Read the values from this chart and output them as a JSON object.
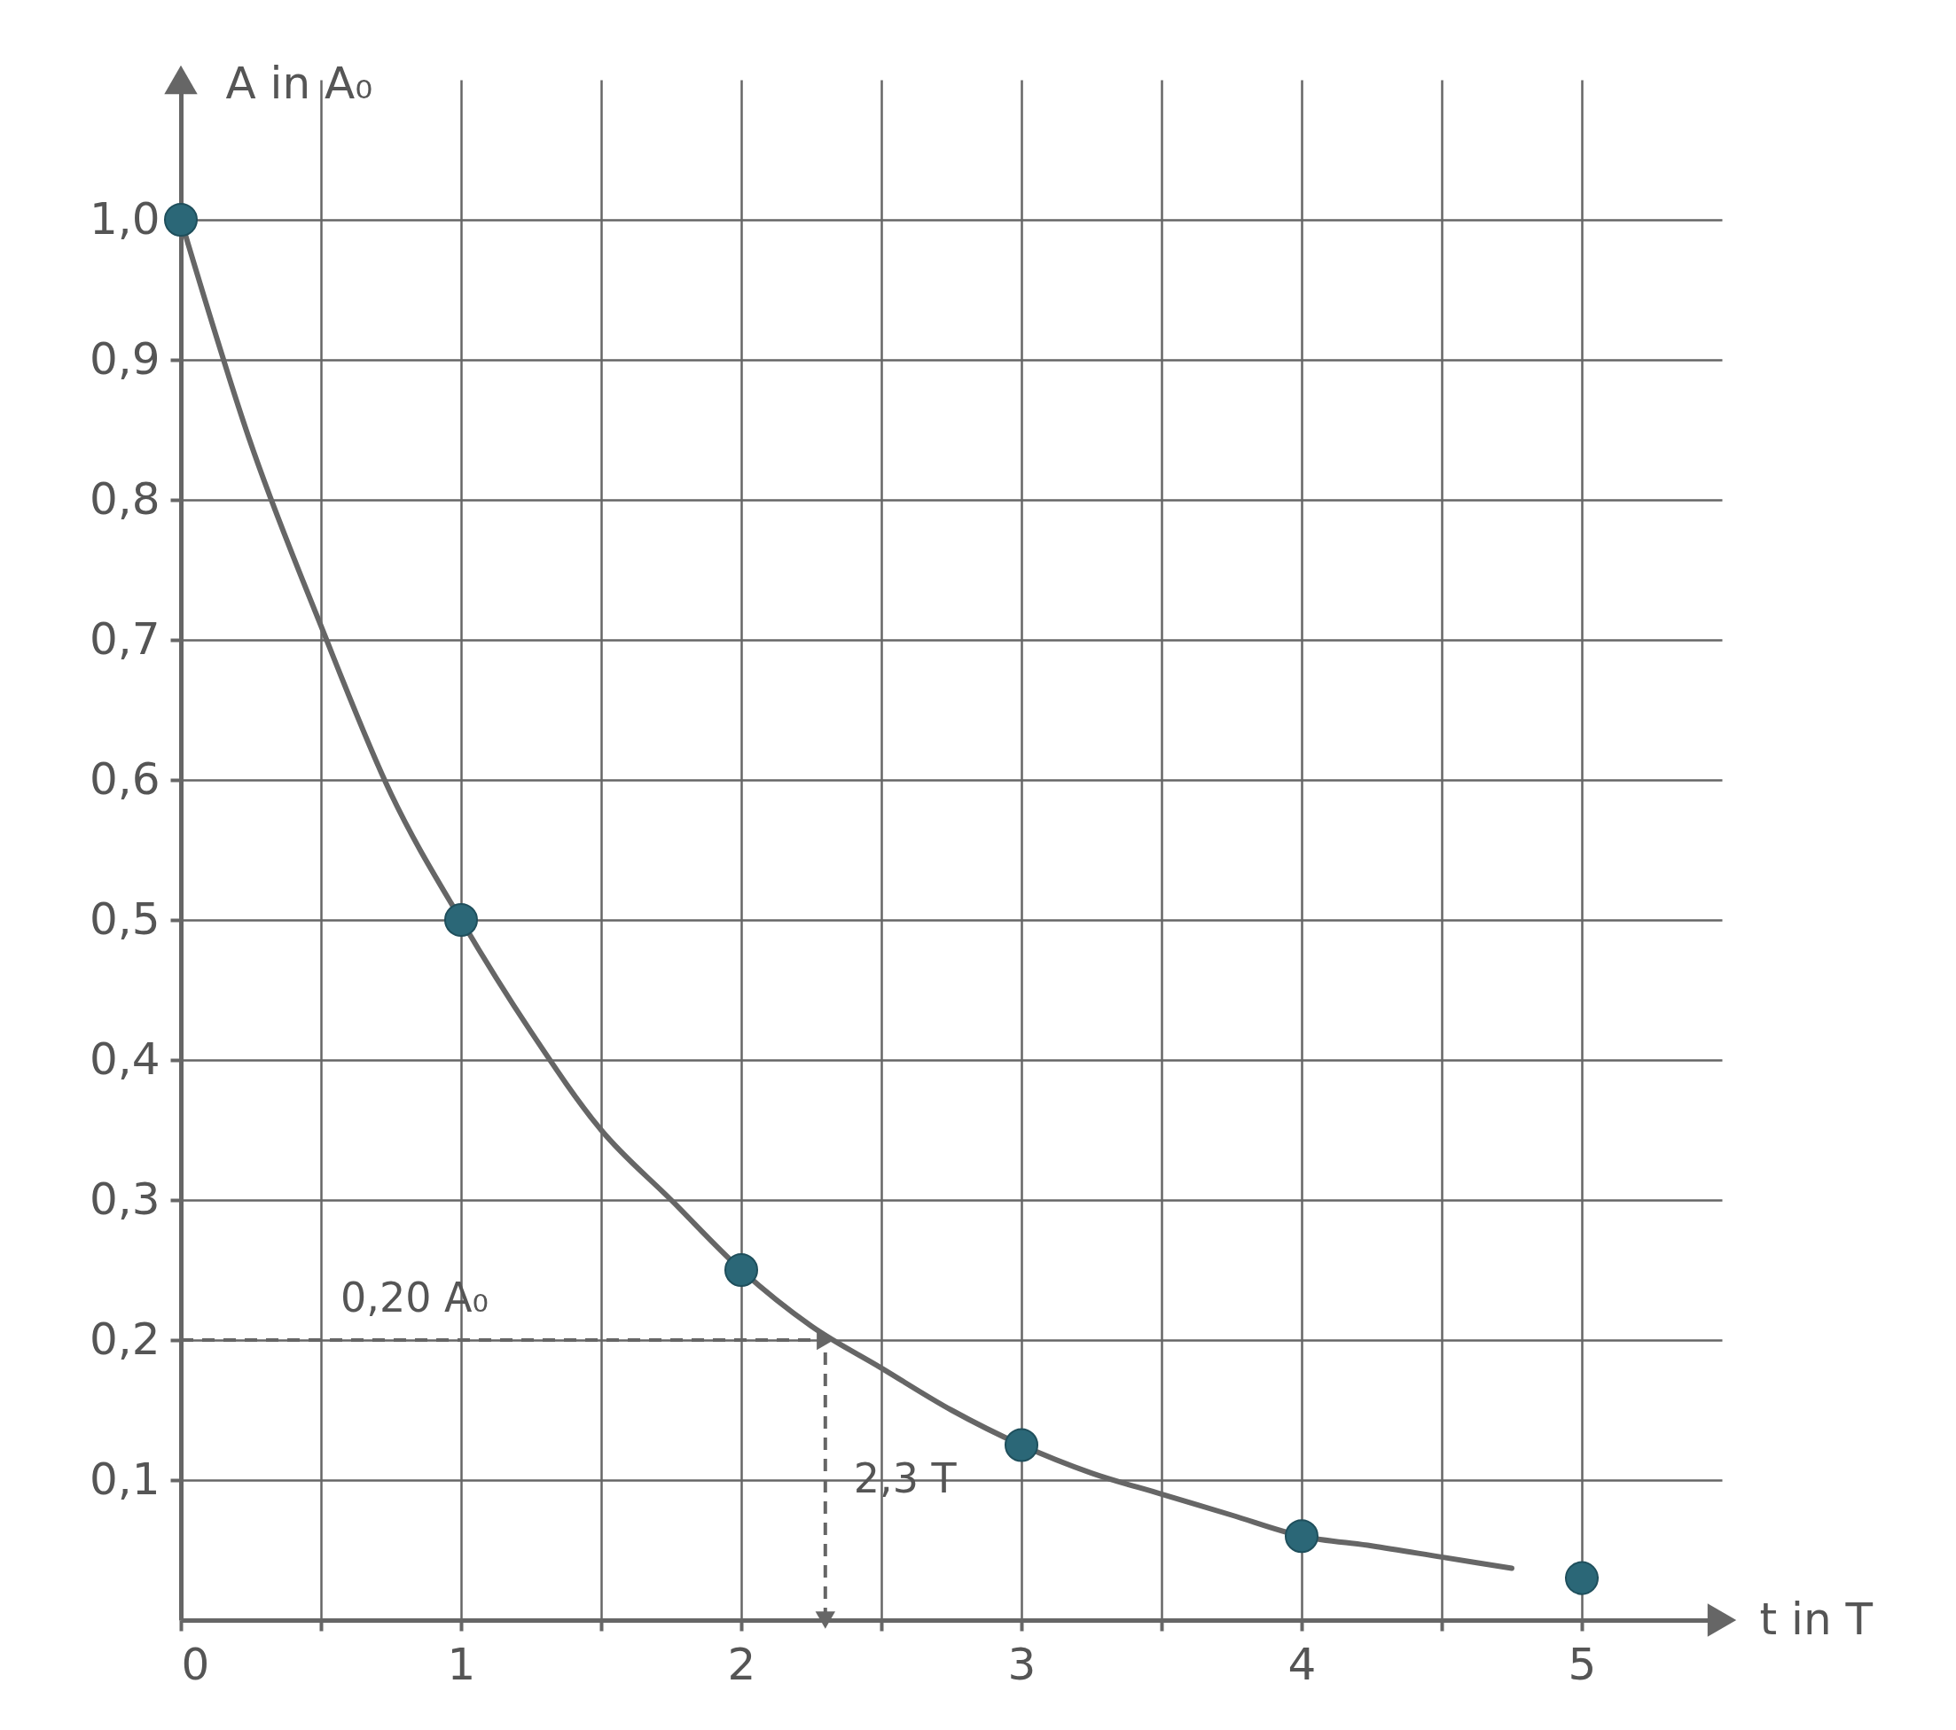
{
  "chart_data": {
    "type": "line",
    "xlabel": "t in T",
    "ylabel": "A in A₀",
    "xlim": [
      0,
      5.5
    ],
    "ylim": [
      0,
      1.1
    ],
    "xticks": [
      0,
      {
        "value": 0.5,
        "label": null
      },
      1,
      {
        "value": 1.5,
        "label": null
      },
      2,
      {
        "value": 2.5,
        "label": null
      },
      3,
      {
        "value": 3.5,
        "label": null
      },
      4,
      {
        "value": 4.5,
        "label": null
      },
      5
    ],
    "yticks": [
      {
        "value": 0.1,
        "label": "0,1"
      },
      {
        "value": 0.2,
        "label": "0,2"
      },
      {
        "value": 0.3,
        "label": "0,3"
      },
      {
        "value": 0.4,
        "label": "0,4"
      },
      {
        "value": 0.5,
        "label": "0,5"
      },
      {
        "value": 0.6,
        "label": "0,6"
      },
      {
        "value": 0.7,
        "label": "0,7"
      },
      {
        "value": 0.8,
        "label": "0,8"
      },
      {
        "value": 0.9,
        "label": "0,9"
      },
      {
        "value": 1.0,
        "label": "1,0"
      }
    ],
    "grid": true,
    "series": [
      {
        "color": "#666666",
        "marker": "none",
        "x": [
          0,
          0.25,
          0.5,
          0.75,
          1,
          1.25,
          1.5,
          1.75,
          2,
          2.25,
          2.5,
          2.75,
          3,
          3.25,
          3.5,
          3.75,
          4,
          4.25,
          4.5,
          4.75
        ],
        "values": [
          1,
          0.84,
          0.71,
          0.59,
          0.5,
          0.42,
          0.35,
          0.3,
          0.25,
          0.21,
          0.18,
          0.15,
          0.125,
          0.105,
          0.09,
          0.075,
          0.06,
          0.053,
          0.045,
          0.037
        ]
      },
      {
        "type": "scatter",
        "color": "#2b6777",
        "marker": "circle",
        "x": [
          0,
          1,
          2,
          3,
          4,
          5
        ],
        "values": [
          1,
          0.5,
          0.25,
          0.125,
          0.06,
          0.03
        ]
      }
    ],
    "ref_lines": [
      {
        "axis": "y",
        "value": 0.2,
        "label": "0,20 A₀",
        "line_style": "dashed",
        "color": "#666666"
      },
      {
        "axis": "x",
        "value": 2.3,
        "label": "2,3 T",
        "line_style": "dashed",
        "color": "#666666"
      }
    ]
  }
}
